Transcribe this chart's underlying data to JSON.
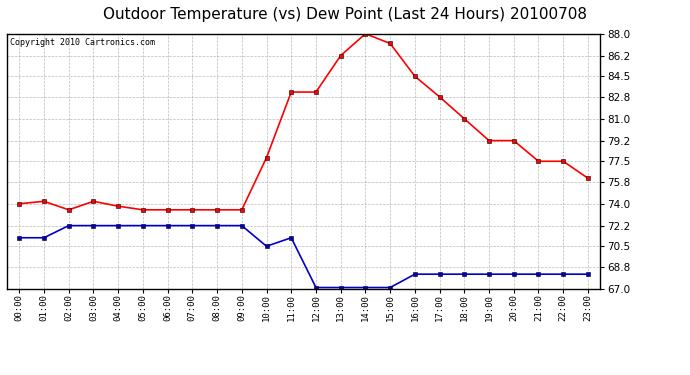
{
  "title": "Outdoor Temperature (vs) Dew Point (Last 24 Hours) 20100708",
  "copyright": "Copyright 2010 Cartronics.com",
  "x_labels": [
    "00:00",
    "01:00",
    "02:00",
    "03:00",
    "04:00",
    "05:00",
    "06:00",
    "07:00",
    "08:00",
    "09:00",
    "10:00",
    "11:00",
    "12:00",
    "13:00",
    "14:00",
    "15:00",
    "16:00",
    "17:00",
    "18:00",
    "19:00",
    "20:00",
    "21:00",
    "22:00",
    "23:00"
  ],
  "temp_data": [
    74.0,
    74.2,
    73.5,
    74.2,
    73.8,
    73.5,
    73.5,
    73.5,
    73.5,
    73.5,
    77.8,
    83.2,
    83.2,
    86.2,
    88.0,
    87.2,
    84.5,
    82.8,
    81.0,
    79.2,
    79.2,
    77.5,
    77.5,
    76.1
  ],
  "dew_data": [
    71.2,
    71.2,
    72.2,
    72.2,
    72.2,
    72.2,
    72.2,
    72.2,
    72.2,
    72.2,
    70.5,
    71.2,
    67.1,
    67.1,
    67.1,
    67.1,
    68.2,
    68.2,
    68.2,
    68.2,
    68.2,
    68.2,
    68.2,
    68.2
  ],
  "temp_color": "#ff0000",
  "dew_color": "#0000cc",
  "bg_color": "#ffffff",
  "plot_bg_color": "#ffffff",
  "grid_color": "#aaaaaa",
  "ylim": [
    67.0,
    88.0
  ],
  "yticks": [
    67.0,
    68.8,
    70.5,
    72.2,
    74.0,
    75.8,
    77.5,
    79.2,
    81.0,
    82.8,
    84.5,
    86.2,
    88.0
  ],
  "title_fontsize": 11,
  "copyright_fontsize": 6,
  "marker": "s",
  "marker_size": 2.5,
  "linewidth": 1.2
}
